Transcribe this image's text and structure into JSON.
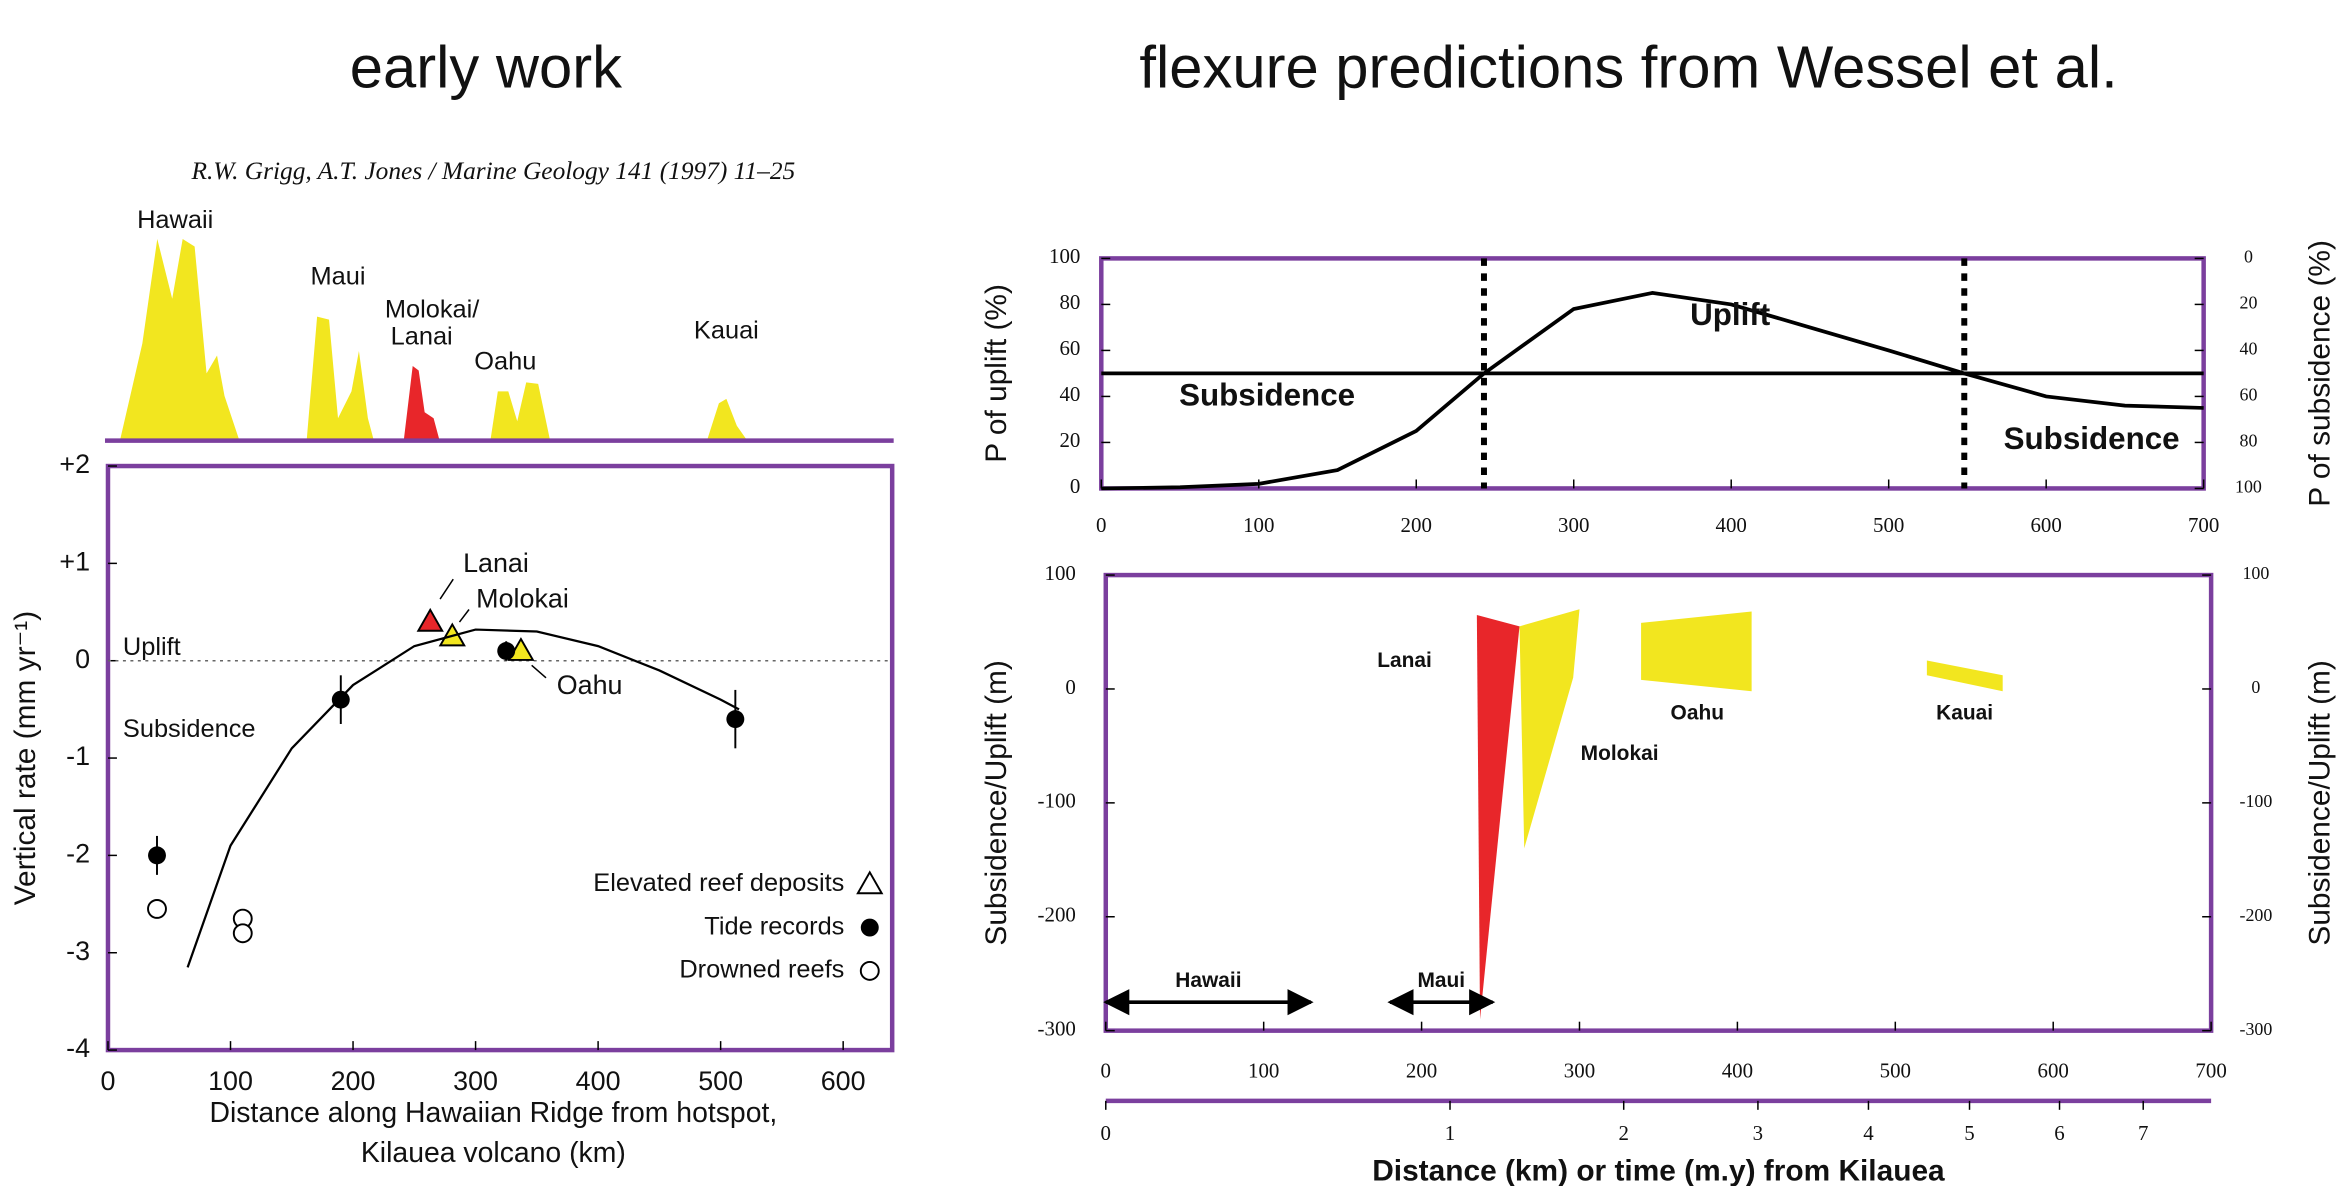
{
  "headings": [
    "early work",
    "flexure predictions from Wessel et al."
  ],
  "citation": "R.W. Grigg, A.T. Jones / Marine Geology 141 (1997) 11–25",
  "island_profile": {
    "labels": [
      "Hawaii",
      "Maui",
      "Molokai/",
      "Lanai",
      "Oahu",
      "Kauai"
    ]
  },
  "chart_data": [
    {
      "type": "scatter",
      "xlabel": [
        "Distance along Hawaiian Ridge from hotspot,",
        "Kilauea volcano (km)"
      ],
      "ylabel": "Vertical rate (mm yr⁻¹)",
      "xlim": [
        0,
        640
      ],
      "xticks": [
        0,
        100,
        200,
        300,
        400,
        500,
        600
      ],
      "ylim": [
        -4,
        2
      ],
      "yticks": [
        {
          "value": 2,
          "label": "+2"
        },
        {
          "value": 1,
          "label": "+1"
        },
        0,
        -1,
        -2,
        -3,
        -4
      ],
      "reference_lines": [
        0
      ],
      "annotations": [
        {
          "text": "Uplift",
          "color": "#e8822a"
        },
        {
          "text": "Subsidence",
          "color": "#2aaee0"
        }
      ],
      "series": [
        {
          "name": "Elevated reef deposits",
          "marker": "triangle",
          "x": [
            263,
            281,
            337
          ],
          "values": [
            0.4,
            0.25,
            0.1
          ],
          "colors": [
            "#e8262a",
            "#f2e61f",
            "#f2e61f"
          ],
          "labels": [
            "Lanai",
            "Molokai",
            "Oahu"
          ]
        },
        {
          "name": "Tide records",
          "marker": "filled-circle",
          "x": [
            40,
            190,
            325,
            512
          ],
          "values": [
            -2.0,
            -0.4,
            0.1,
            -0.6
          ],
          "errors": [
            0.2,
            0.25,
            0.1,
            0.3
          ]
        },
        {
          "name": "Drowned reefs",
          "marker": "open-circle",
          "x": [
            40,
            110,
            110
          ],
          "values": [
            -2.55,
            -2.65,
            -2.8
          ]
        },
        {
          "marker": "line",
          "x": [
            65,
            100,
            150,
            200,
            250,
            300,
            350,
            400,
            450,
            500,
            515
          ],
          "values": [
            -3.15,
            -1.9,
            -0.9,
            -0.25,
            0.15,
            0.32,
            0.3,
            0.15,
            -0.1,
            -0.4,
            -0.5
          ]
        }
      ]
    },
    {
      "type": "line",
      "ylabel": "P of uplift (%)",
      "y2label": "P of subsidence (%)",
      "xlim": [
        0,
        700
      ],
      "xticks": [
        0,
        100,
        200,
        300,
        400,
        500,
        600,
        700
      ],
      "ylim": [
        0,
        100
      ],
      "yticks": [
        0,
        20,
        40,
        60,
        80,
        100
      ],
      "y2lim": [
        100,
        0
      ],
      "y2ticks": [
        0,
        20,
        40,
        60,
        80,
        100
      ],
      "reference_x": [
        243,
        548
      ],
      "annotations": [
        {
          "text": "Uplift",
          "color": "#2aaee0"
        },
        {
          "text": "Subsidence",
          "color": "#e8906a"
        },
        {
          "text": "Subsidence",
          "color": "#e8906a"
        }
      ],
      "series": [
        {
          "color": "#000000",
          "x": [
            0,
            50,
            100,
            150,
            200,
            243,
            300,
            350,
            400,
            450,
            500,
            548,
            600,
            650,
            700
          ],
          "values": [
            0,
            0.5,
            2,
            8,
            25,
            50,
            78,
            85,
            80,
            70,
            60,
            50,
            40,
            36,
            35
          ]
        },
        {
          "color": "#000000",
          "x": [
            0,
            700
          ],
          "values": [
            50,
            50
          ]
        }
      ]
    },
    {
      "type": "polygon",
      "xlabel": "Distance (km) or time (m.y) from Kilauea",
      "ylabel": "Subsidence/Uplift (m)",
      "y2label": "Subsidence/Uplift (m)",
      "xlim": [
        0,
        700
      ],
      "xticks": [
        0,
        100,
        200,
        300,
        400,
        500,
        600,
        700
      ],
      "x2ticks": [
        {
          "value": 0,
          "label": "0"
        },
        {
          "value": 218,
          "label": "1"
        },
        {
          "value": 328,
          "label": "2"
        },
        {
          "value": 413,
          "label": "3"
        },
        {
          "value": 483,
          "label": "4"
        },
        {
          "value": 547,
          "label": "5"
        },
        {
          "value": 604,
          "label": "6"
        },
        {
          "value": 657,
          "label": "7"
        }
      ],
      "ylim": [
        -300,
        100
      ],
      "yticks": [
        100,
        0,
        -100,
        -200,
        -300
      ],
      "y2lim": [
        -300,
        100
      ],
      "y2ticks": [
        100,
        0,
        -100,
        -200,
        -300
      ],
      "ranges": [
        {
          "label": "Hawaii",
          "from": 0,
          "to": 130,
          "at": -275
        },
        {
          "label": "Maui",
          "from": 180,
          "to": 245,
          "at": -275
        }
      ],
      "series": [
        {
          "name": "Lanai",
          "color": "#e8262a",
          "x": [
            235,
            262,
            237
          ],
          "values": [
            65,
            55,
            -290
          ]
        },
        {
          "name": "Molokai",
          "color": "#f2e61f",
          "x": [
            262,
            300,
            296,
            265
          ],
          "values": [
            55,
            70,
            10,
            -140
          ]
        },
        {
          "name": "Oahu",
          "color": "#f2e61f",
          "x": [
            339,
            409,
            409,
            339
          ],
          "values": [
            58,
            68,
            -2,
            8
          ]
        },
        {
          "name": "Kauai",
          "color": "#f2e61f",
          "x": [
            520,
            568,
            568,
            520
          ],
          "values": [
            25,
            12,
            -2,
            12
          ]
        }
      ]
    }
  ]
}
